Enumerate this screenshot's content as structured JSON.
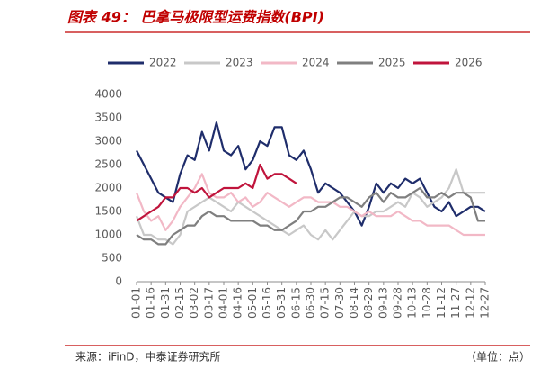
{
  "header": {
    "title": "图表 49：  巴拿马极限型运费指数(BPI)"
  },
  "chart_data": {
    "type": "line",
    "categories": [
      "01-01",
      null,
      "01-16",
      null,
      "01-31",
      null,
      "02-15",
      null,
      "03-02",
      null,
      "03-17",
      null,
      "04-01",
      null,
      "04-16",
      null,
      "05-01",
      null,
      "05-16",
      null,
      "05-31",
      null,
      "06-15",
      null,
      "06-30",
      null,
      "07-15",
      null,
      "07-30",
      null,
      "08-14",
      null,
      "08-29",
      null,
      "09-13",
      null,
      "09-28",
      null,
      "10-13",
      null,
      "10-28",
      null,
      "11-12",
      null,
      "11-27",
      null,
      "12-12",
      null,
      "12-27"
    ],
    "series": [
      {
        "name": "2022",
        "color": "#1f2d6b",
        "values": [
          2800,
          2500,
          2200,
          1900,
          1800,
          1700,
          2300,
          2700,
          2600,
          3200,
          2800,
          3400,
          2800,
          2700,
          2900,
          2400,
          2600,
          3000,
          2900,
          3300,
          3300,
          2700,
          2600,
          2800,
          2400,
          1900,
          2100,
          2000,
          1900,
          1700,
          1500,
          1200,
          1600,
          2100,
          1900,
          2100,
          2000,
          2200,
          2100,
          2200,
          1900,
          1600,
          1500,
          1700,
          1400,
          1500,
          1600,
          1600,
          1500
        ]
      },
      {
        "name": "2023",
        "color": "#c8c8c8",
        "values": [
          1400,
          1000,
          1000,
          900,
          900,
          800,
          1000,
          1500,
          1600,
          1700,
          1800,
          1700,
          1600,
          1500,
          1700,
          1600,
          1500,
          1400,
          1300,
          1200,
          1100,
          1000,
          1100,
          1200,
          1000,
          900,
          1100,
          900,
          1100,
          1300,
          1500,
          1400,
          1400,
          1500,
          1500,
          1600,
          1700,
          1600,
          1900,
          1800,
          1600,
          1700,
          1800,
          2000,
          2400,
          1900,
          1900,
          1900,
          1900
        ]
      },
      {
        "name": "2024",
        "color": "#f2b8c6",
        "values": [
          1900,
          1500,
          1300,
          1400,
          1100,
          1300,
          1600,
          1800,
          2000,
          2300,
          1900,
          1800,
          1800,
          1900,
          1700,
          1800,
          1600,
          1700,
          1900,
          1800,
          1700,
          1600,
          1700,
          1800,
          1800,
          1700,
          1700,
          1700,
          1600,
          1600,
          1500,
          1400,
          1500,
          1400,
          1400,
          1400,
          1500,
          1400,
          1300,
          1300,
          1200,
          1200,
          1200,
          1200,
          1100,
          1000,
          1000,
          1000,
          1000
        ]
      },
      {
        "name": "2025",
        "color": "#7f7f7f",
        "values": [
          1000,
          900,
          900,
          800,
          800,
          1000,
          1100,
          1200,
          1200,
          1400,
          1500,
          1400,
          1400,
          1300,
          1300,
          1300,
          1300,
          1200,
          1200,
          1100,
          1100,
          1200,
          1300,
          1500,
          1500,
          1600,
          1600,
          1700,
          1800,
          1800,
          1700,
          1600,
          1800,
          1900,
          1700,
          1900,
          1800,
          1800,
          1900,
          2000,
          1800,
          1800,
          1900,
          1800,
          1900,
          1900,
          1800,
          1300,
          1300
        ]
      },
      {
        "name": "2026",
        "color": "#c0143c",
        "values": [
          1300,
          1400,
          1500,
          1600,
          1800,
          1800,
          2000,
          2000,
          1900,
          2000,
          1800,
          1900,
          2000,
          2000,
          2000,
          2100,
          2000,
          2500,
          2200,
          2300,
          2300,
          2200,
          2100,
          null,
          null,
          null,
          null,
          null,
          null,
          null,
          null,
          null,
          null,
          null,
          null,
          null,
          null,
          null,
          null,
          null,
          null,
          null,
          null,
          null,
          null,
          null,
          null,
          null,
          null
        ]
      }
    ],
    "ylim": [
      0,
      4000
    ],
    "yticks": [
      0,
      500,
      1000,
      1500,
      2000,
      2500,
      3000,
      3500,
      4000
    ],
    "grid": false,
    "legend": "top"
  },
  "footer": {
    "source": "来源：iFinD，中泰证券研究所",
    "unit": "（单位：点）"
  }
}
